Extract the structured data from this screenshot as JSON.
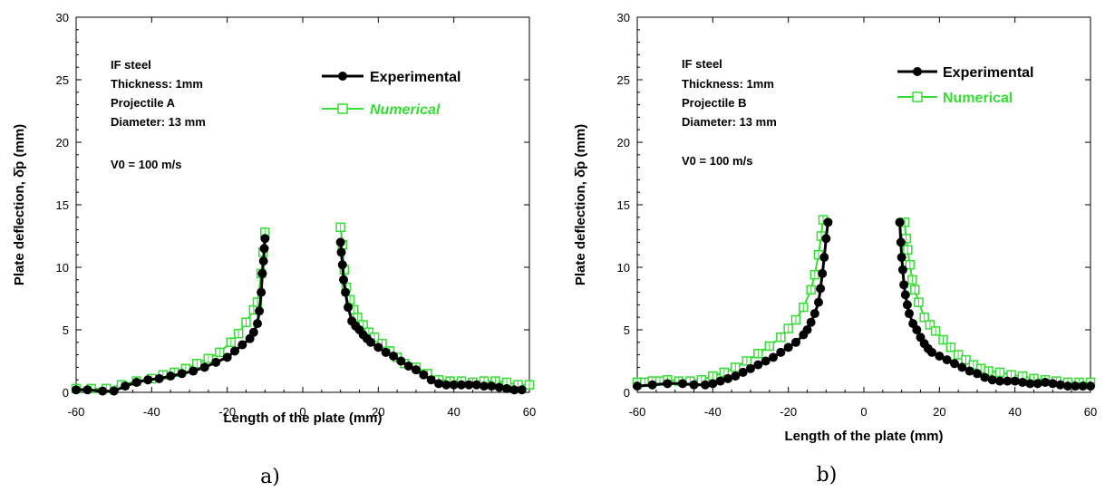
{
  "colors": {
    "experimental": "#000000",
    "numerical": "#33dd33"
  },
  "chart_data": [
    {
      "type": "line",
      "panel_label": "a)",
      "xlabel": "Length of the plate (mm)",
      "ylabel": "Plate deflection, δ̄p (mm)",
      "xlim": [
        -60,
        60
      ],
      "ylim": [
        0,
        30
      ],
      "xticks": [
        "-60",
        "-40",
        "-20",
        "0",
        "20",
        "40",
        "60"
      ],
      "yticks": [
        "0",
        "5",
        "10",
        "15",
        "20",
        "25",
        "30"
      ],
      "annotations": [
        "IF steel",
        "Thickness: 1mm",
        "Projectile A",
        "Diameter: 13 mm",
        "V0 = 100 m/s"
      ],
      "series": [
        {
          "name": "Experimental",
          "marker": "circle",
          "segments": [
            [
              [
                -60,
                0.2
              ],
              [
                -57,
                0.2
              ],
              [
                -53,
                0.1
              ],
              [
                -50,
                0.1
              ],
              [
                -47,
                0.5
              ],
              [
                -44,
                0.8
              ],
              [
                -41,
                1.0
              ],
              [
                -38,
                1.1
              ],
              [
                -35,
                1.3
              ],
              [
                -32,
                1.5
              ],
              [
                -29,
                1.7
              ],
              [
                -26,
                2.0
              ],
              [
                -23,
                2.4
              ],
              [
                -20,
                2.8
              ],
              [
                -18,
                3.3
              ],
              [
                -16,
                3.8
              ],
              [
                -14,
                4.3
              ],
              [
                -13,
                4.8
              ],
              [
                -12,
                5.5
              ],
              [
                -11.5,
                6.5
              ],
              [
                -11,
                8.0
              ],
              [
                -10.7,
                9.5
              ],
              [
                -10.4,
                10.5
              ],
              [
                -10.2,
                11.5
              ],
              [
                -10,
                12.3
              ]
            ],
            [
              [
                10,
                12.0
              ],
              [
                10.2,
                11.2
              ],
              [
                10.5,
                10.2
              ],
              [
                10.8,
                9.0
              ],
              [
                11.3,
                8.0
              ],
              [
                12,
                6.8
              ],
              [
                13,
                5.7
              ],
              [
                14,
                5.3
              ],
              [
                15,
                5.0
              ],
              [
                16,
                4.6
              ],
              [
                17,
                4.3
              ],
              [
                18,
                4.0
              ],
              [
                20,
                3.6
              ],
              [
                22,
                3.2
              ],
              [
                24,
                2.9
              ],
              [
                26,
                2.5
              ],
              [
                28,
                2.1
              ],
              [
                30,
                1.8
              ],
              [
                32,
                1.4
              ],
              [
                34,
                1.0
              ],
              [
                36,
                0.7
              ],
              [
                38,
                0.6
              ],
              [
                40,
                0.6
              ],
              [
                42,
                0.6
              ],
              [
                44,
                0.6
              ],
              [
                46,
                0.6
              ],
              [
                48,
                0.5
              ],
              [
                50,
                0.5
              ],
              [
                52,
                0.4
              ],
              [
                54,
                0.3
              ],
              [
                56,
                0.2
              ],
              [
                58,
                0.2
              ]
            ]
          ]
        },
        {
          "name": "Numerical",
          "marker": "square",
          "segments": [
            [
              [
                -60,
                0.3
              ],
              [
                -56,
                0.3
              ],
              [
                -52,
                0.3
              ],
              [
                -48,
                0.6
              ],
              [
                -44,
                0.9
              ],
              [
                -40,
                1.1
              ],
              [
                -37,
                1.4
              ],
              [
                -34,
                1.6
              ],
              [
                -31,
                1.9
              ],
              [
                -28,
                2.3
              ],
              [
                -25,
                2.7
              ],
              [
                -22,
                3.2
              ],
              [
                -19,
                4.0
              ],
              [
                -17,
                4.7
              ],
              [
                -15,
                5.6
              ],
              [
                -13,
                6.6
              ],
              [
                -12,
                7.2
              ],
              [
                -11,
                9.5
              ],
              [
                -10.5,
                11.2
              ],
              [
                -10,
                12.8
              ]
            ],
            [
              [
                10,
                13.2
              ],
              [
                10.5,
                11.8
              ],
              [
                11,
                9.8
              ],
              [
                11.5,
                8.4
              ],
              [
                12.5,
                7.4
              ],
              [
                13.5,
                6.6
              ],
              [
                14.5,
                6.0
              ],
              [
                16,
                5.4
              ],
              [
                17.5,
                4.8
              ],
              [
                19,
                4.4
              ],
              [
                21,
                3.9
              ],
              [
                23,
                3.3
              ],
              [
                25,
                2.8
              ],
              [
                27,
                2.3
              ],
              [
                30,
                2.0
              ],
              [
                33,
                1.5
              ],
              [
                36,
                1.0
              ],
              [
                39,
                0.9
              ],
              [
                42,
                0.9
              ],
              [
                45,
                0.8
              ],
              [
                48,
                0.9
              ],
              [
                51,
                0.9
              ],
              [
                54,
                0.8
              ],
              [
                57,
                0.6
              ],
              [
                60,
                0.6
              ]
            ]
          ]
        }
      ]
    },
    {
      "type": "line",
      "panel_label": "b)",
      "xlabel": "Length of the plate (mm)",
      "ylabel": "Plate deflection, δ̄p (mm)",
      "xlim": [
        -60,
        60
      ],
      "ylim": [
        0,
        30
      ],
      "xticks": [
        "-60",
        "-40",
        "-20",
        "0",
        "20",
        "40",
        "60"
      ],
      "yticks": [
        "0",
        "5",
        "10",
        "15",
        "20",
        "25",
        "30"
      ],
      "annotations": [
        "IF steel",
        "Thickness: 1mm",
        "Projectile B",
        "Diameter: 13 mm",
        "V0 = 100 m/s"
      ],
      "series": [
        {
          "name": "Experimental",
          "marker": "circle",
          "segments": [
            [
              [
                -60,
                0.5
              ],
              [
                -56,
                0.6
              ],
              [
                -52,
                0.7
              ],
              [
                -48,
                0.7
              ],
              [
                -45,
                0.6
              ],
              [
                -42,
                0.6
              ],
              [
                -40,
                0.7
              ],
              [
                -38,
                0.9
              ],
              [
                -36,
                1.1
              ],
              [
                -34,
                1.3
              ],
              [
                -32,
                1.6
              ],
              [
                -30,
                1.9
              ],
              [
                -28,
                2.2
              ],
              [
                -26,
                2.5
              ],
              [
                -24,
                2.8
              ],
              [
                -22,
                3.2
              ],
              [
                -20,
                3.6
              ],
              [
                -18,
                4.0
              ],
              [
                -16,
                4.6
              ],
              [
                -15,
                5.0
              ],
              [
                -14,
                5.6
              ],
              [
                -13,
                6.3
              ],
              [
                -12,
                7.2
              ],
              [
                -11.5,
                8.3
              ],
              [
                -11,
                9.5
              ],
              [
                -10.5,
                10.8
              ],
              [
                -10,
                12.3
              ],
              [
                -9.5,
                13.6
              ]
            ],
            [
              [
                9.5,
                13.6
              ],
              [
                9.8,
                12.0
              ],
              [
                10,
                10.8
              ],
              [
                10.3,
                9.8
              ],
              [
                10.6,
                8.6
              ],
              [
                11,
                7.8
              ],
              [
                11.5,
                7.0
              ],
              [
                12,
                6.3
              ],
              [
                13,
                5.5
              ],
              [
                14,
                5.0
              ],
              [
                15,
                4.4
              ],
              [
                16,
                3.9
              ],
              [
                17,
                3.5
              ],
              [
                18,
                3.2
              ],
              [
                20,
                2.9
              ],
              [
                22,
                2.6
              ],
              [
                24,
                2.3
              ],
              [
                26,
                2.0
              ],
              [
                28,
                1.7
              ],
              [
                30,
                1.5
              ],
              [
                32,
                1.2
              ],
              [
                34,
                1.0
              ],
              [
                36,
                0.9
              ],
              [
                38,
                0.9
              ],
              [
                40,
                0.9
              ],
              [
                42,
                0.8
              ],
              [
                44,
                0.7
              ],
              [
                46,
                0.7
              ],
              [
                48,
                0.8
              ],
              [
                50,
                0.7
              ],
              [
                52,
                0.6
              ],
              [
                54,
                0.5
              ],
              [
                56,
                0.5
              ],
              [
                58,
                0.5
              ],
              [
                60,
                0.5
              ]
            ]
          ]
        },
        {
          "name": "Numerical",
          "marker": "square",
          "segments": [
            [
              [
                -60,
                0.8
              ],
              [
                -58,
                0.8
              ],
              [
                -56,
                0.9
              ],
              [
                -54,
                0.9
              ],
              [
                -52,
                1.0
              ],
              [
                -49,
                0.9
              ],
              [
                -46,
                0.9
              ],
              [
                -43,
                1.0
              ],
              [
                -40,
                1.3
              ],
              [
                -37,
                1.6
              ],
              [
                -34,
                2.0
              ],
              [
                -31,
                2.5
              ],
              [
                -28,
                3.1
              ],
              [
                -25,
                3.7
              ],
              [
                -22,
                4.4
              ],
              [
                -20,
                5.1
              ],
              [
                -18,
                5.8
              ],
              [
                -16,
                6.8
              ],
              [
                -14,
                8.2
              ],
              [
                -13,
                9.4
              ],
              [
                -12,
                11.0
              ],
              [
                -11.3,
                12.5
              ],
              [
                -10.8,
                13.8
              ]
            ],
            [
              [
                10.8,
                13.6
              ],
              [
                11.2,
                12.3
              ],
              [
                11.6,
                11.4
              ],
              [
                12.2,
                10.2
              ],
              [
                12.8,
                9.0
              ],
              [
                13.5,
                8.2
              ],
              [
                14.5,
                7.2
              ],
              [
                16,
                6.0
              ],
              [
                17.5,
                5.4
              ],
              [
                19,
                4.9
              ],
              [
                21,
                4.2
              ],
              [
                23,
                3.6
              ],
              [
                25,
                3.0
              ],
              [
                27,
                2.6
              ],
              [
                29,
                2.2
              ],
              [
                31,
                1.9
              ],
              [
                33,
                1.7
              ],
              [
                36,
                1.6
              ],
              [
                39,
                1.4
              ],
              [
                42,
                1.3
              ],
              [
                45,
                1.1
              ],
              [
                48,
                1.0
              ],
              [
                51,
                0.9
              ],
              [
                54,
                0.8
              ],
              [
                57,
                0.8
              ],
              [
                60,
                0.8
              ]
            ]
          ]
        }
      ]
    }
  ]
}
